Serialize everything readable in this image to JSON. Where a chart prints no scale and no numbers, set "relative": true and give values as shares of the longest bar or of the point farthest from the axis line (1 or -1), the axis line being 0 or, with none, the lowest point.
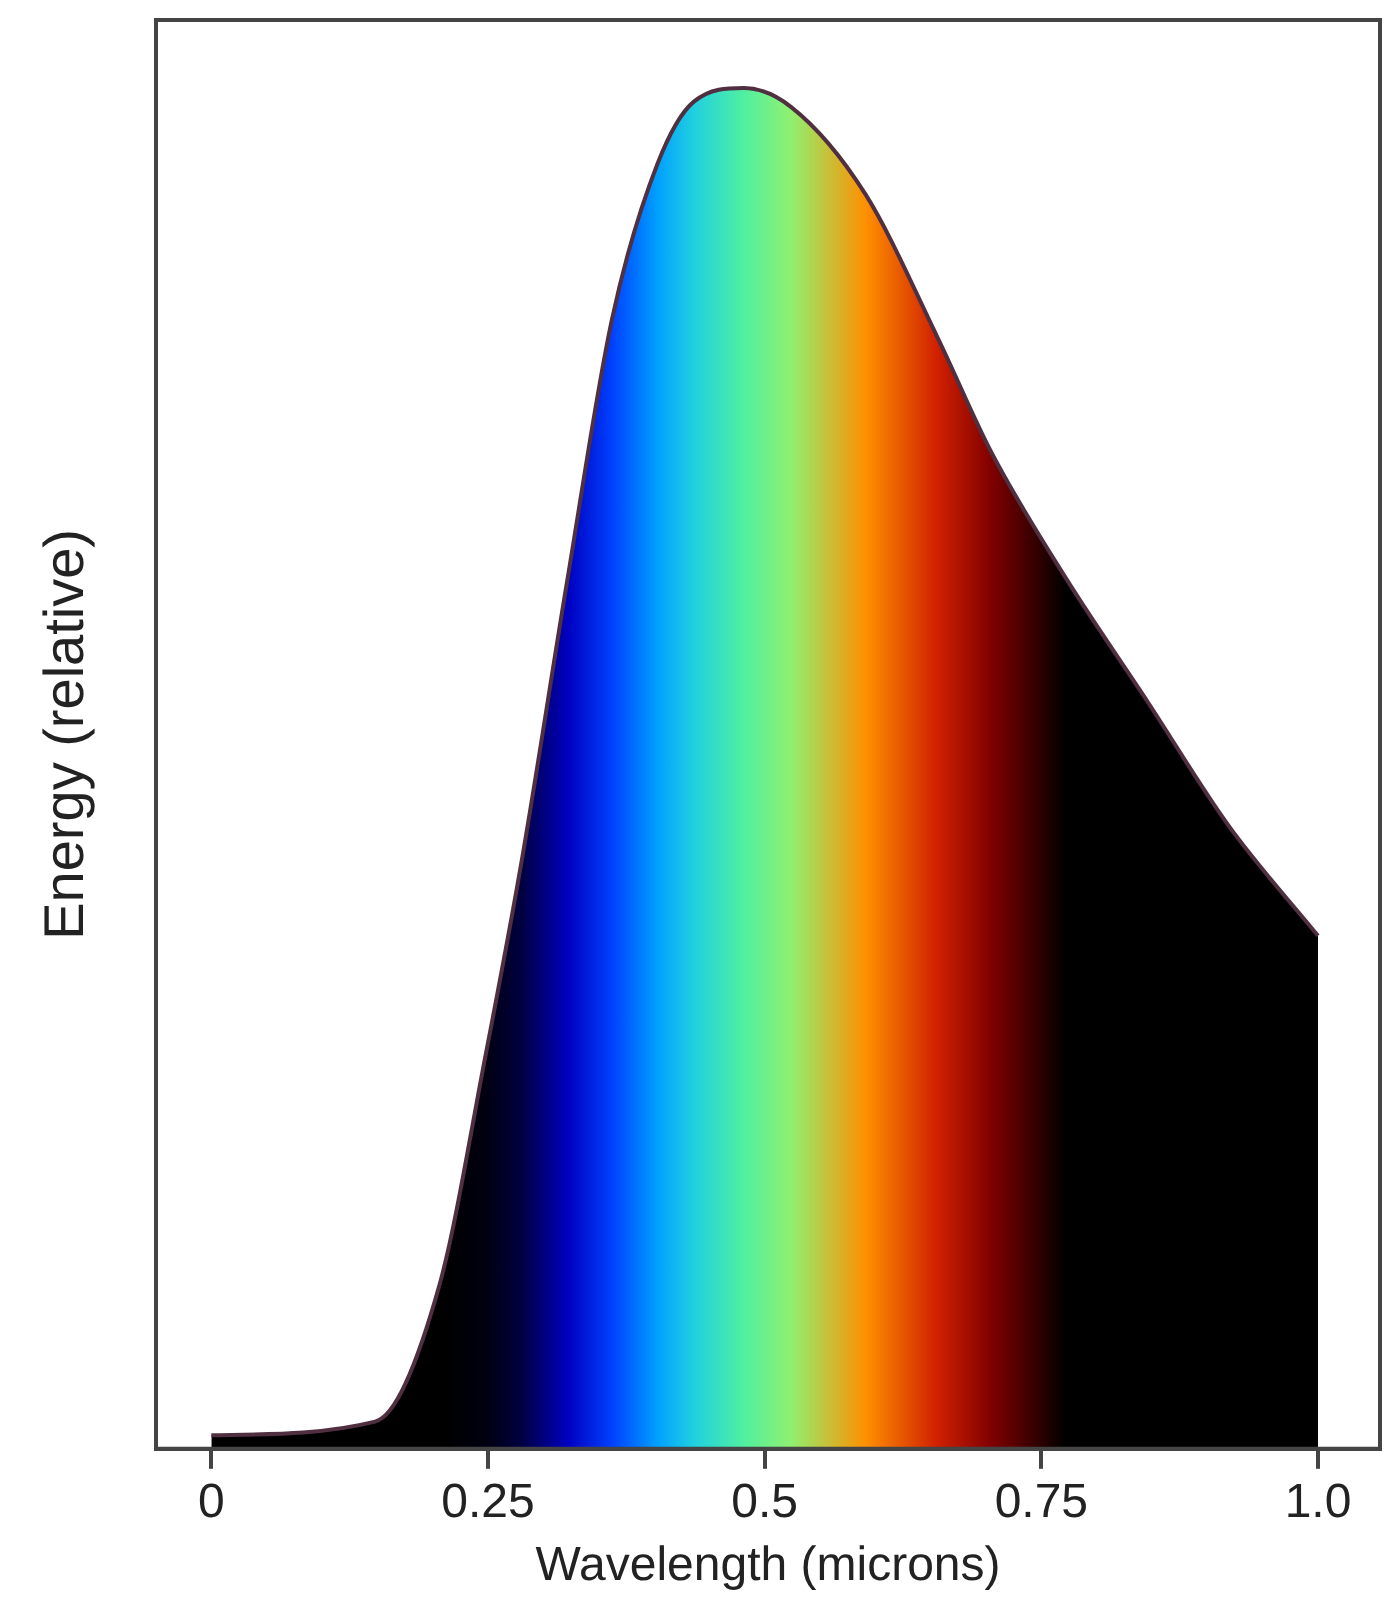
{
  "chart_data": {
    "type": "area",
    "xlabel": "Wavelength (microns)",
    "ylabel": "Energy (relative)",
    "relative": true,
    "xlim": [
      -0.05,
      1.056
    ],
    "xticks": [
      0,
      0.25,
      0.5,
      0.75,
      {
        "value": 1,
        "label": "1.0"
      }
    ],
    "grid": false,
    "legend": false,
    "series": [
      {
        "color": "#503040",
        "x": [
          0,
          0.148,
          0.206,
          0.248,
          0.28,
          0.322,
          0.362,
          0.403,
          0.436,
          0.481,
          0.524,
          0.591,
          0.656,
          0.705,
          0.772,
          0.846,
          0.92,
          1.0
        ],
        "values": [
          0.01,
          0.02,
          0.12,
          0.29,
          0.43,
          0.64,
          0.83,
          0.944,
          0.99,
          1,
          0.986,
          0.922,
          0.817,
          0.732,
          0.64,
          0.549,
          0.457,
          0.377
        ],
        "colors": [
          "#000000",
          "#000000",
          "#000000",
          "#000010",
          "#000040",
          "#0000c0",
          "#0040ff",
          "#00a0ff",
          "#20d0e0",
          "#50f0a0",
          "#90f070",
          "#ff9000",
          "#d02000",
          "#800000",
          "#000000",
          "#000000",
          "#000000",
          "#000000"
        ]
      }
    ]
  }
}
